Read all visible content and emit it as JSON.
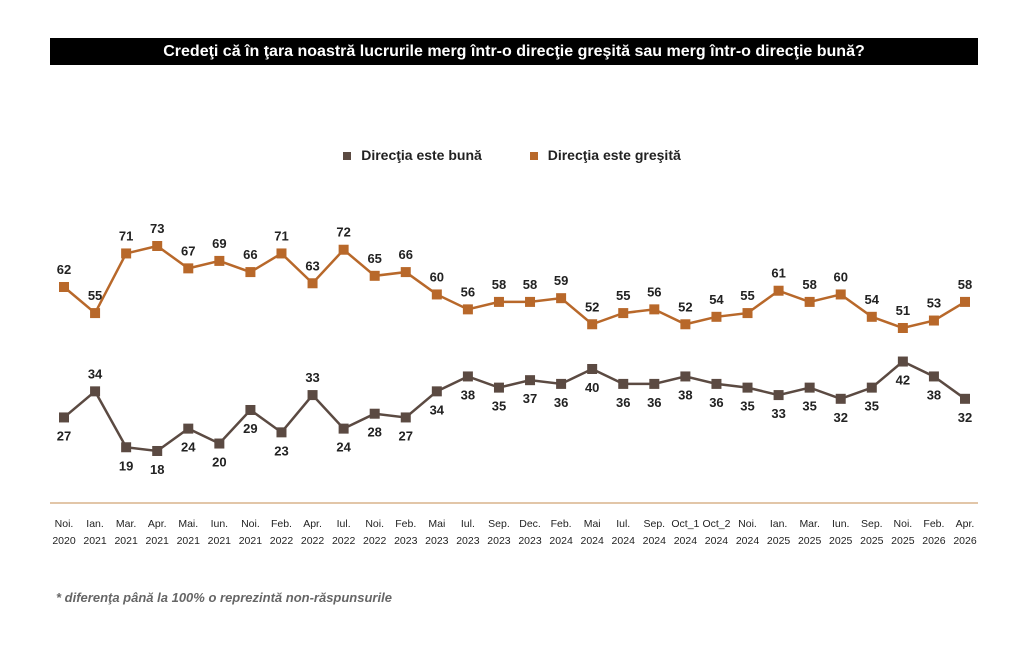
{
  "chart_data": {
    "type": "line",
    "title": "Credeţi că în ţara noastră lucrurile merg într-o direcţie greşită sau merg într-o direcţie bună?",
    "categories": [
      [
        "Noi.",
        "2020"
      ],
      [
        "Ian.",
        "2021"
      ],
      [
        "Mar.",
        "2021"
      ],
      [
        "Apr.",
        "2021"
      ],
      [
        "Mai.",
        "2021"
      ],
      [
        "Iun.",
        "2021"
      ],
      [
        "Noi.",
        "2021"
      ],
      [
        "Feb.",
        "2022"
      ],
      [
        "Apr.",
        "2022"
      ],
      [
        "Iul.",
        "2022"
      ],
      [
        "Noi.",
        "2022"
      ],
      [
        "Feb.",
        "2023"
      ],
      [
        "Mai",
        "2023"
      ],
      [
        "Iul.",
        "2023"
      ],
      [
        "Sep.",
        "2023"
      ],
      [
        "Dec.",
        "2023"
      ],
      [
        "Feb.",
        "2024"
      ],
      [
        "Mai",
        "2024"
      ],
      [
        "Iul.",
        "2024"
      ],
      [
        "Sep.",
        "2024"
      ],
      [
        "Oct_1",
        "2024"
      ],
      [
        "Oct_2",
        "2024"
      ],
      [
        "Noi.",
        "2024"
      ],
      [
        "Ian.",
        "2025"
      ],
      [
        "Mar.",
        "2025"
      ],
      [
        "Iun.",
        "2025"
      ],
      [
        "Sep.",
        "2025"
      ],
      [
        "Noi.",
        "2025"
      ],
      [
        "Feb.",
        "2026"
      ],
      [
        "Apr.",
        "2026"
      ]
    ],
    "series": [
      {
        "name": "Direcţia este bună",
        "color": "#5b4a42",
        "values": [
          27,
          34,
          19,
          18,
          24,
          20,
          29,
          23,
          33,
          24,
          28,
          27,
          34,
          38,
          35,
          37,
          36,
          40,
          36,
          36,
          38,
          36,
          35,
          33,
          35,
          32,
          35,
          42,
          38,
          32
        ]
      },
      {
        "name": "Direcţia este greşită",
        "color": "#b8682a",
        "values": [
          62,
          55,
          71,
          73,
          67,
          69,
          66,
          71,
          63,
          72,
          65,
          66,
          60,
          56,
          58,
          58,
          59,
          52,
          55,
          56,
          52,
          54,
          55,
          61,
          58,
          60,
          54,
          51,
          53,
          58
        ]
      }
    ],
    "marker": "square",
    "grid": false,
    "legend": "top"
  },
  "footnote": "* diferenţa până la 100% o reprezintă non-răspunsurile"
}
